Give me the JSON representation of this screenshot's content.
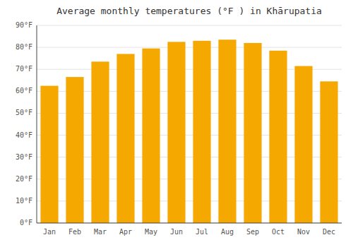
{
  "chart_data": {
    "type": "bar",
    "title": "Average monthly temperatures (°F ) in Khārupatia",
    "categories": [
      "Jan",
      "Feb",
      "Mar",
      "Apr",
      "May",
      "Jun",
      "Jul",
      "Aug",
      "Sep",
      "Oct",
      "Nov",
      "Dec"
    ],
    "values": [
      62.5,
      66.5,
      73.5,
      77,
      79.5,
      82.5,
      83,
      83.5,
      82,
      78.5,
      71.5,
      64.5
    ],
    "color": "#F5A800",
    "ylim": [
      0,
      90
    ],
    "yticks": [
      {
        "value": 0,
        "label": "0°F"
      },
      {
        "value": 10,
        "label": "10°F"
      },
      {
        "value": 20,
        "label": "20°F"
      },
      {
        "value": 30,
        "label": "30°F"
      },
      {
        "value": 40,
        "label": "40°F"
      },
      {
        "value": 50,
        "label": "50°F"
      },
      {
        "value": 60,
        "label": "60°F"
      },
      {
        "value": 70,
        "label": "70°F"
      },
      {
        "value": 80,
        "label": "80°F"
      },
      {
        "value": 90,
        "label": "90°F"
      }
    ],
    "grid": true
  }
}
